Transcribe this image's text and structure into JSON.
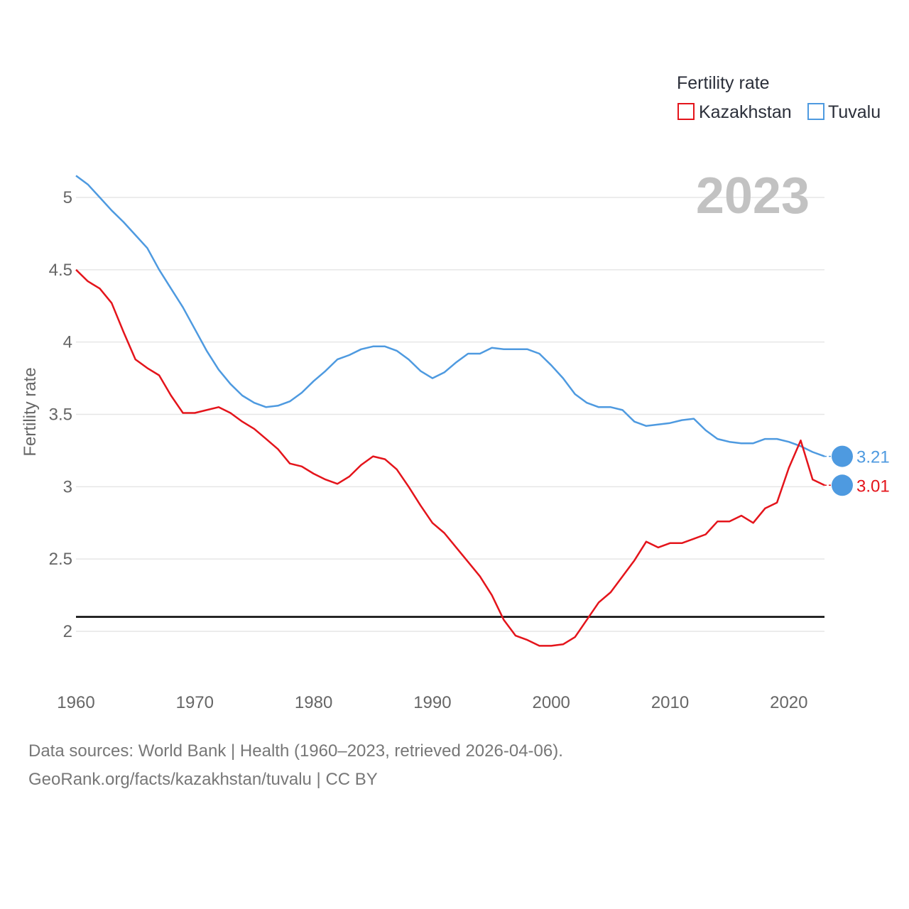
{
  "chart_data": {
    "type": "line",
    "legend_title": "Fertility rate",
    "ylabel": "Fertility rate",
    "current_year": "2023",
    "xlim": [
      1960,
      2023
    ],
    "ylim": [
      1.6,
      5.3
    ],
    "x_ticks": [
      1960,
      1970,
      1980,
      1990,
      2000,
      2010,
      2020
    ],
    "y_ticks": [
      2,
      2.5,
      3,
      3.5,
      4,
      4.5,
      5
    ],
    "y_tick_labels": [
      "2",
      "2.5",
      "3",
      "3.5",
      "4",
      "4.5",
      "5"
    ],
    "reference_line": 2.1,
    "x": [
      1960,
      1961,
      1962,
      1963,
      1964,
      1965,
      1966,
      1967,
      1968,
      1969,
      1970,
      1971,
      1972,
      1973,
      1974,
      1975,
      1976,
      1977,
      1978,
      1979,
      1980,
      1981,
      1982,
      1983,
      1984,
      1985,
      1986,
      1987,
      1988,
      1989,
      1990,
      1991,
      1992,
      1993,
      1994,
      1995,
      1996,
      1997,
      1998,
      1999,
      2000,
      2001,
      2002,
      2003,
      2004,
      2005,
      2006,
      2007,
      2008,
      2009,
      2010,
      2011,
      2012,
      2013,
      2014,
      2015,
      2016,
      2017,
      2018,
      2019,
      2020,
      2021,
      2022,
      2023
    ],
    "series": [
      {
        "name": "Kazakhstan",
        "color": "#e4141b",
        "end_label": "3.01",
        "values": [
          4.5,
          4.42,
          4.37,
          4.27,
          4.07,
          3.88,
          3.82,
          3.77,
          3.63,
          3.51,
          3.51,
          3.53,
          3.55,
          3.51,
          3.45,
          3.4,
          3.33,
          3.26,
          3.16,
          3.14,
          3.09,
          3.05,
          3.02,
          3.07,
          3.15,
          3.21,
          3.19,
          3.12,
          3.0,
          2.87,
          2.75,
          2.68,
          2.58,
          2.48,
          2.38,
          2.25,
          2.08,
          1.97,
          1.94,
          1.9,
          1.9,
          1.91,
          1.96,
          2.08,
          2.2,
          2.27,
          2.38,
          2.49,
          2.62,
          2.58,
          2.61,
          2.61,
          2.64,
          2.67,
          2.76,
          2.76,
          2.8,
          2.75,
          2.85,
          2.89,
          3.13,
          3.32,
          3.05,
          3.01
        ]
      },
      {
        "name": "Tuvalu",
        "color": "#4e9ae0",
        "end_label": "3.21",
        "values": [
          5.15,
          5.09,
          5.0,
          4.91,
          4.83,
          4.74,
          4.65,
          4.5,
          4.37,
          4.24,
          4.09,
          3.94,
          3.81,
          3.71,
          3.63,
          3.58,
          3.55,
          3.56,
          3.59,
          3.65,
          3.73,
          3.8,
          3.88,
          3.91,
          3.95,
          3.97,
          3.97,
          3.94,
          3.88,
          3.8,
          3.75,
          3.79,
          3.86,
          3.92,
          3.92,
          3.96,
          3.95,
          3.95,
          3.95,
          3.92,
          3.84,
          3.75,
          3.64,
          3.58,
          3.55,
          3.55,
          3.53,
          3.45,
          3.42,
          3.43,
          3.44,
          3.46,
          3.47,
          3.39,
          3.33,
          3.31,
          3.3,
          3.3,
          3.33,
          3.33,
          3.31,
          3.28,
          3.24,
          3.21
        ]
      }
    ]
  },
  "source": {
    "line1": "Data sources: World Bank | Health (1960–2023, retrieved 2026-04-06).",
    "line2": "GeoRank.org/facts/kazakhstan/tuvalu | CC BY"
  }
}
